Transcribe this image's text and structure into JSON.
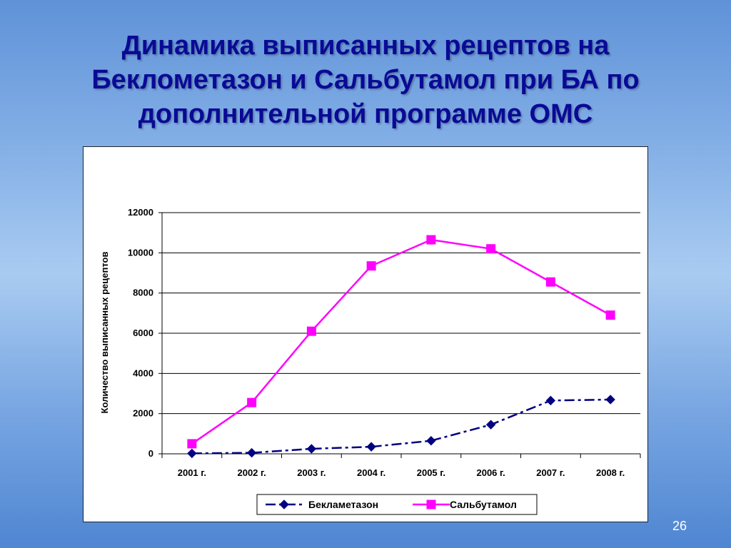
{
  "slide": {
    "title_lines": [
      "Динамика выписанных рецептов на",
      "Беклометазон и Сальбутамол при БА по",
      "дополнительной программе ОМС"
    ],
    "page_number": "26"
  },
  "colors": {
    "title": "#0a0a96",
    "series_beclometasone": "#000080",
    "series_salbutamol": "#ff00ff"
  },
  "chart_data": {
    "type": "line",
    "title": "",
    "xlabel": "",
    "ylabel": "Количество выписанных рецептов",
    "categories": [
      "2001 г.",
      "2002 г.",
      "2003 г.",
      "2004 г.",
      "2005 г.",
      "2006 г.",
      "2007 г.",
      "2008 г."
    ],
    "ylim": [
      0,
      12000
    ],
    "yticks": [
      "0",
      "2000",
      "4000",
      "6000",
      "8000",
      "10000",
      "12000"
    ],
    "grid": true,
    "legend_position": "bottom",
    "series": [
      {
        "name": "Бекламетазон",
        "values": [
          20,
          50,
          250,
          350,
          650,
          1450,
          2650,
          2700
        ],
        "marker": "diamond",
        "line_style": "dash-dot"
      },
      {
        "name": "Сальбутамол",
        "values": [
          500,
          2550,
          6100,
          9350,
          10650,
          10200,
          8550,
          6900
        ],
        "marker": "square",
        "line_style": "solid"
      }
    ]
  }
}
